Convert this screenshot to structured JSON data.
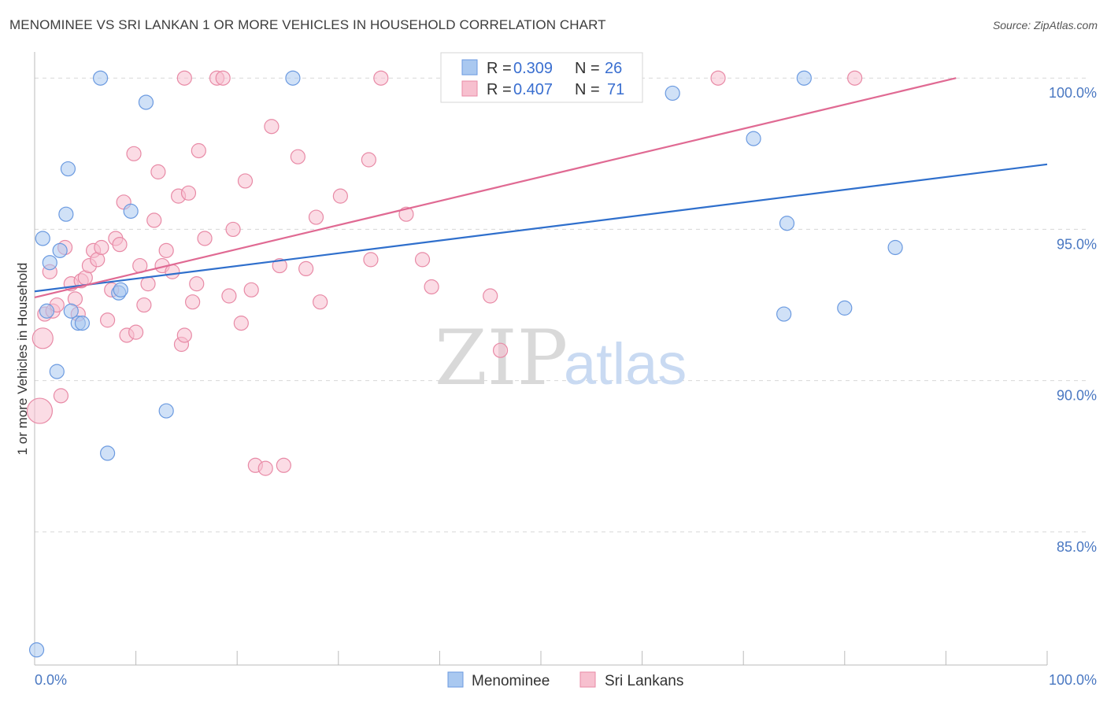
{
  "header": {
    "title": "MENOMINEE VS SRI LANKAN 1 OR MORE VEHICLES IN HOUSEHOLD CORRELATION CHART",
    "source": "Source: ZipAtlas.com"
  },
  "watermark": {
    "zip": "ZIP",
    "atlas": "atlas"
  },
  "colors": {
    "menominee_fill": "#a9c8f0",
    "menominee_stroke": "#6b9ae0",
    "menominee_line": "#2f6fcc",
    "srilankan_fill": "#f7c0cf",
    "srilankan_stroke": "#e88aa6",
    "srilankan_line": "#e06a93",
    "tick_label": "#4a78c2",
    "grid": "#d8d8d8"
  },
  "legend": {
    "rows": [
      {
        "r_label": "R =",
        "r_value": "0.309",
        "n_label": "N =",
        "n_value": "26"
      },
      {
        "r_label": "R =",
        "r_value": "0.407",
        "n_label": "N =",
        "n_value": "71"
      }
    ]
  },
  "chart_data": {
    "type": "scatter",
    "title": "MENOMINEE VS SRI LANKAN 1 OR MORE VEHICLES IN HOUSEHOLD CORRELATION CHART",
    "xlabel": "",
    "ylabel": "1 or more Vehicles in Household",
    "xlim": [
      0,
      100
    ],
    "ylim": [
      80.6,
      100.5
    ],
    "x_tick_labels": [
      {
        "value": 0,
        "label": "0.0%"
      },
      {
        "value": 100,
        "label": "100.0%"
      }
    ],
    "y_tick_labels": [
      {
        "value": 100,
        "label": "100.0%"
      },
      {
        "value": 95,
        "label": "95.0%"
      },
      {
        "value": 90,
        "label": "90.0%"
      },
      {
        "value": 85,
        "label": "85.0%"
      }
    ],
    "grid": true,
    "legend_position": "top-center",
    "series": [
      {
        "name": "Menominee",
        "R": 0.309,
        "N": 26,
        "trend": {
          "x": [
            0,
            100
          ],
          "y": [
            92.95,
            97.15
          ]
        },
        "points": [
          {
            "x": 0.2,
            "y": 81.1
          },
          {
            "x": 0.8,
            "y": 94.7
          },
          {
            "x": 1.2,
            "y": 92.3
          },
          {
            "x": 1.5,
            "y": 93.9
          },
          {
            "x": 2.2,
            "y": 90.3
          },
          {
            "x": 2.5,
            "y": 94.3
          },
          {
            "x": 3.3,
            "y": 97.0
          },
          {
            "x": 3.1,
            "y": 95.5
          },
          {
            "x": 3.6,
            "y": 92.3
          },
          {
            "x": 4.3,
            "y": 91.9
          },
          {
            "x": 4.7,
            "y": 91.9
          },
          {
            "x": 6.5,
            "y": 100.0
          },
          {
            "x": 7.2,
            "y": 87.6
          },
          {
            "x": 8.3,
            "y": 92.9
          },
          {
            "x": 8.5,
            "y": 93.0
          },
          {
            "x": 9.5,
            "y": 95.6
          },
          {
            "x": 11.0,
            "y": 99.2
          },
          {
            "x": 13.0,
            "y": 89.0
          },
          {
            "x": 25.5,
            "y": 100.0
          },
          {
            "x": 63.0,
            "y": 99.5
          },
          {
            "x": 71.0,
            "y": 98.0
          },
          {
            "x": 74.0,
            "y": 92.2
          },
          {
            "x": 74.3,
            "y": 95.2
          },
          {
            "x": 76.0,
            "y": 100.0
          },
          {
            "x": 80.0,
            "y": 92.4
          },
          {
            "x": 85.0,
            "y": 94.4
          }
        ]
      },
      {
        "name": "Sri Lankans",
        "R": 0.407,
        "N": 71,
        "trend": {
          "x": [
            0,
            91
          ],
          "y": [
            92.75,
            100.0
          ]
        },
        "points": [
          {
            "x": 0.5,
            "y": 89.0,
            "r": 16
          },
          {
            "x": 0.8,
            "y": 91.4,
            "r": 13
          },
          {
            "x": 1.0,
            "y": 92.2
          },
          {
            "x": 1.5,
            "y": 93.6
          },
          {
            "x": 1.8,
            "y": 92.3
          },
          {
            "x": 2.2,
            "y": 92.5
          },
          {
            "x": 2.6,
            "y": 89.5
          },
          {
            "x": 3.0,
            "y": 94.4
          },
          {
            "x": 3.6,
            "y": 93.2
          },
          {
            "x": 4.0,
            "y": 92.7
          },
          {
            "x": 4.3,
            "y": 92.2
          },
          {
            "x": 4.6,
            "y": 93.3
          },
          {
            "x": 5.0,
            "y": 93.4
          },
          {
            "x": 5.4,
            "y": 93.8
          },
          {
            "x": 5.8,
            "y": 94.3
          },
          {
            "x": 6.2,
            "y": 94.0
          },
          {
            "x": 6.6,
            "y": 94.4
          },
          {
            "x": 7.2,
            "y": 92.0
          },
          {
            "x": 7.6,
            "y": 93.0
          },
          {
            "x": 8.0,
            "y": 94.7
          },
          {
            "x": 8.4,
            "y": 94.5
          },
          {
            "x": 8.8,
            "y": 95.9
          },
          {
            "x": 9.1,
            "y": 91.5
          },
          {
            "x": 9.8,
            "y": 97.5
          },
          {
            "x": 10.0,
            "y": 91.6
          },
          {
            "x": 10.4,
            "y": 93.8
          },
          {
            "x": 10.8,
            "y": 92.5
          },
          {
            "x": 11.2,
            "y": 93.2
          },
          {
            "x": 11.8,
            "y": 95.3
          },
          {
            "x": 12.2,
            "y": 96.9
          },
          {
            "x": 12.6,
            "y": 93.8
          },
          {
            "x": 13.0,
            "y": 94.3
          },
          {
            "x": 13.6,
            "y": 93.6
          },
          {
            "x": 14.2,
            "y": 96.1
          },
          {
            "x": 14.5,
            "y": 91.2
          },
          {
            "x": 14.8,
            "y": 91.5
          },
          {
            "x": 15.2,
            "y": 96.2
          },
          {
            "x": 15.6,
            "y": 92.6
          },
          {
            "x": 16.0,
            "y": 93.2
          },
          {
            "x": 16.2,
            "y": 97.6
          },
          {
            "x": 16.8,
            "y": 94.7
          },
          {
            "x": 18.0,
            "y": 100.0
          },
          {
            "x": 18.6,
            "y": 100.0
          },
          {
            "x": 19.2,
            "y": 92.8
          },
          {
            "x": 19.6,
            "y": 95.0
          },
          {
            "x": 20.4,
            "y": 91.9
          },
          {
            "x": 20.8,
            "y": 96.6
          },
          {
            "x": 21.4,
            "y": 93.0
          },
          {
            "x": 21.8,
            "y": 87.2
          },
          {
            "x": 22.8,
            "y": 87.1
          },
          {
            "x": 23.4,
            "y": 98.4
          },
          {
            "x": 24.2,
            "y": 93.8
          },
          {
            "x": 24.6,
            "y": 87.2
          },
          {
            "x": 26.0,
            "y": 97.4
          },
          {
            "x": 26.8,
            "y": 93.7
          },
          {
            "x": 27.8,
            "y": 95.4
          },
          {
            "x": 28.2,
            "y": 92.6
          },
          {
            "x": 30.2,
            "y": 96.1
          },
          {
            "x": 33.0,
            "y": 97.3
          },
          {
            "x": 33.2,
            "y": 94.0
          },
          {
            "x": 34.2,
            "y": 100.0
          },
          {
            "x": 36.7,
            "y": 95.5
          },
          {
            "x": 38.3,
            "y": 94.0
          },
          {
            "x": 39.2,
            "y": 93.1
          },
          {
            "x": 45.0,
            "y": 92.8
          },
          {
            "x": 46.0,
            "y": 91.0
          },
          {
            "x": 55.0,
            "y": 100.0
          },
          {
            "x": 67.5,
            "y": 100.0
          },
          {
            "x": 81.0,
            "y": 100.0
          },
          {
            "x": 41.5,
            "y": 100.0
          },
          {
            "x": 14.8,
            "y": 100.0
          }
        ]
      }
    ]
  }
}
